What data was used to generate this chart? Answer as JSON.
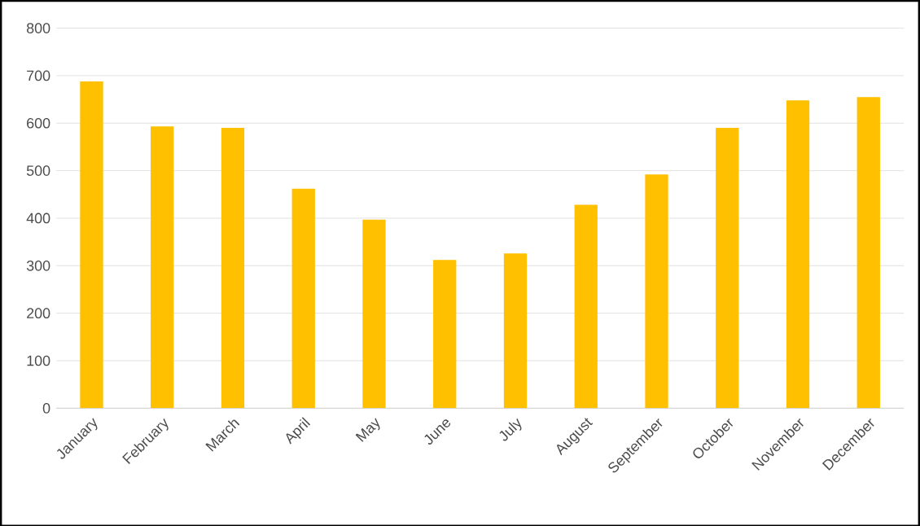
{
  "chart_data": {
    "type": "bar",
    "categories": [
      "January",
      "February",
      "March",
      "April",
      "May",
      "June",
      "July",
      "August",
      "September",
      "October",
      "November",
      "December"
    ],
    "values": [
      688,
      593,
      590,
      462,
      397,
      312,
      326,
      428,
      492,
      590,
      648,
      655
    ],
    "color": "#ffc000",
    "ylim": [
      0,
      800
    ],
    "yticks": [
      0,
      100,
      200,
      300,
      400,
      500,
      600,
      700,
      800
    ],
    "grid": "y"
  }
}
